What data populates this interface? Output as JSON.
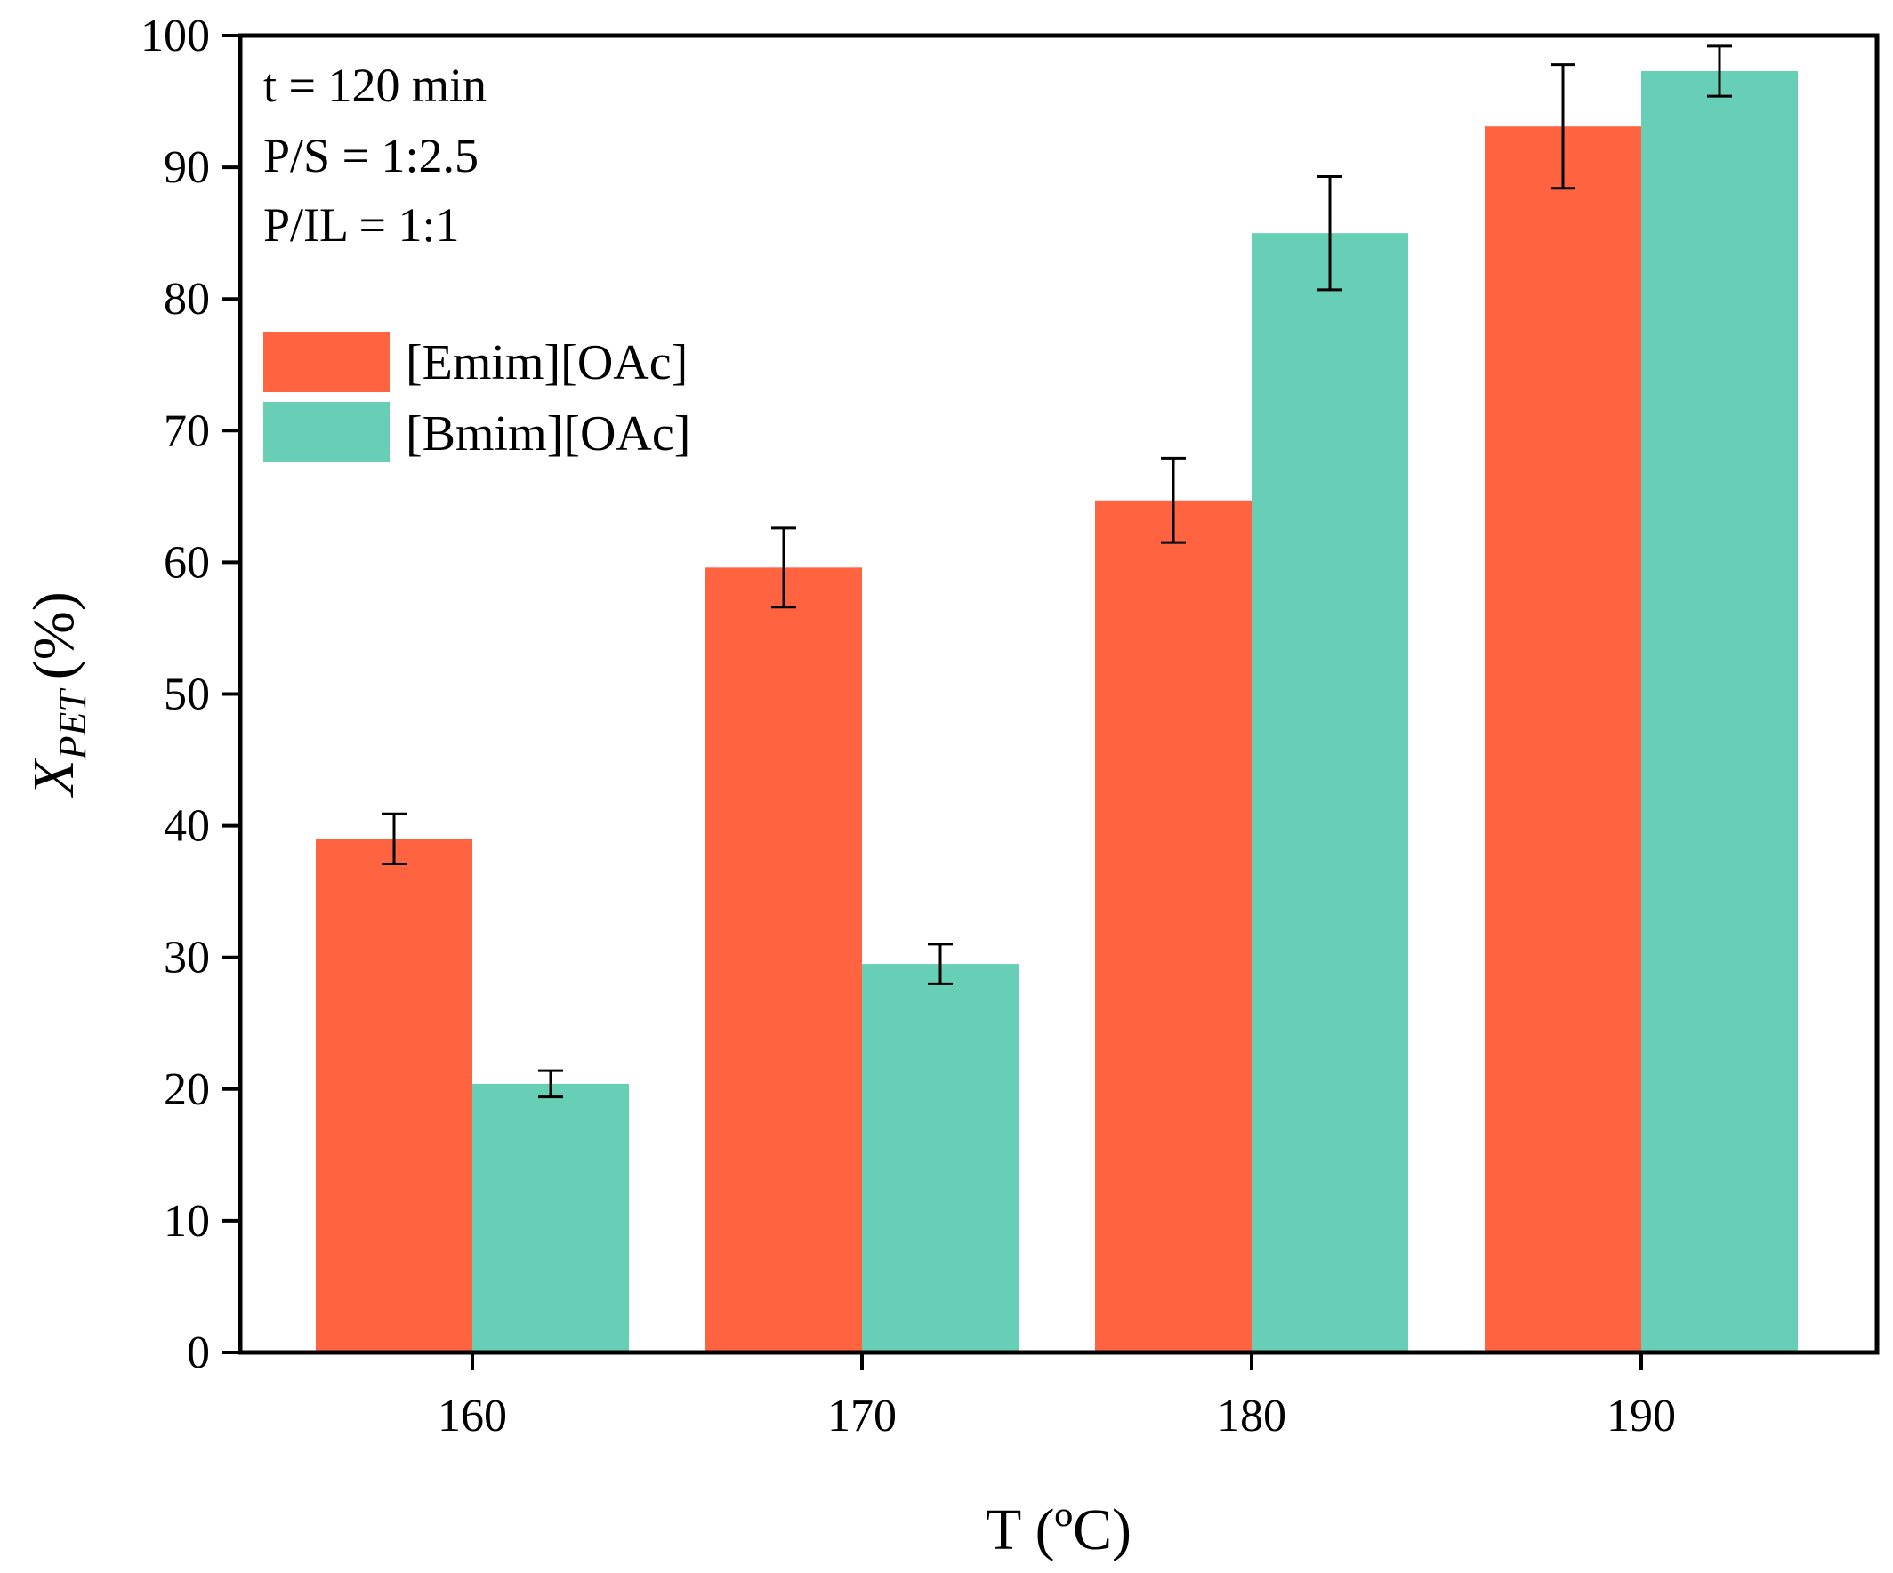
{
  "chart_data": {
    "type": "bar",
    "xlabel": "T (ºC)",
    "ylabel_main": "X",
    "ylabel_sub": "PET",
    "ylabel_unit": "(%)",
    "ylim": [
      0,
      100
    ],
    "yticks": [
      "0",
      "10",
      "20",
      "30",
      "40",
      "50",
      "60",
      "70",
      "80",
      "90",
      "100"
    ],
    "categories": [
      "160",
      "170",
      "180",
      "190"
    ],
    "series": [
      {
        "name": "[Emim][OAc]",
        "color": "#FF6340",
        "values": [
          39.0,
          59.6,
          64.7,
          93.1
        ],
        "errors": [
          1.9,
          3.0,
          3.2,
          4.7
        ]
      },
      {
        "name": "[Bmim][OAc]",
        "color": "#66CFB6",
        "values": [
          20.4,
          29.5,
          85.0,
          97.3
        ],
        "errors": [
          1.0,
          1.5,
          4.3,
          1.9
        ]
      }
    ],
    "annotations": [
      "t = 120 min",
      "P/S = 1:2.5",
      "P/IL = 1:1"
    ],
    "legend_position": "upper-left"
  }
}
